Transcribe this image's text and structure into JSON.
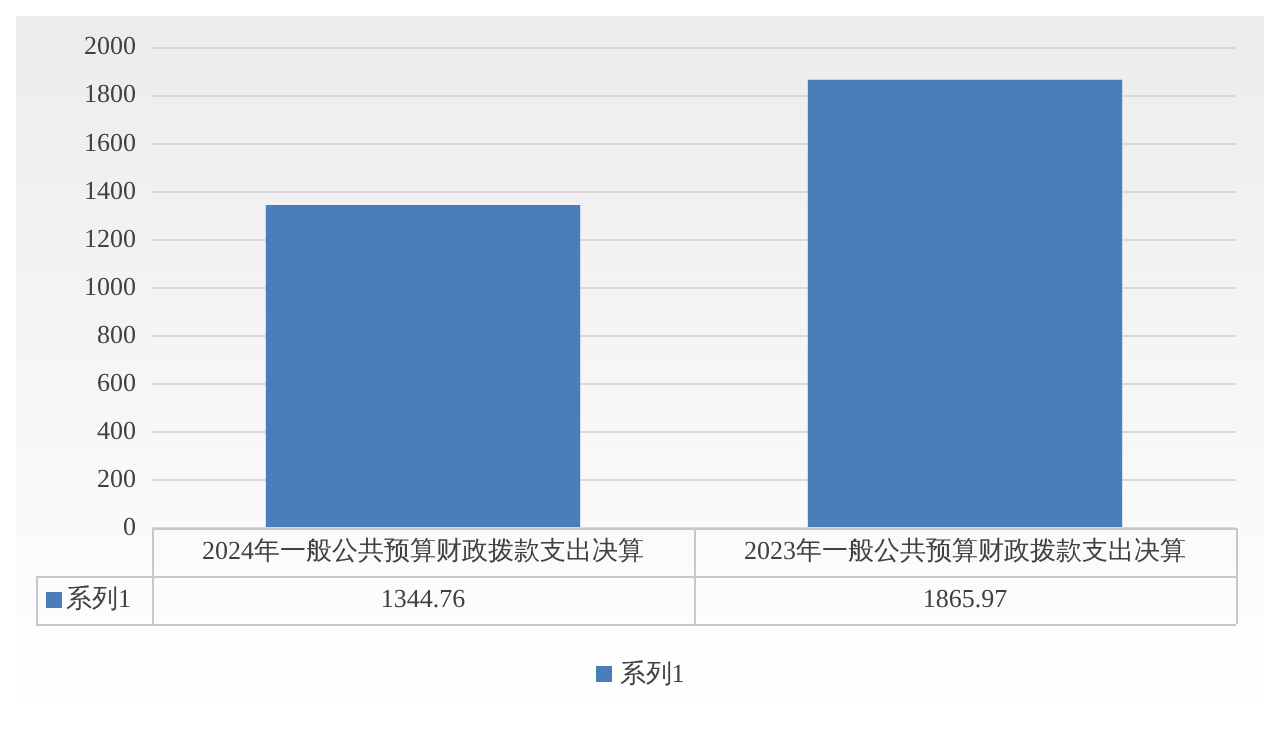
{
  "chart_data": {
    "type": "bar",
    "categories": [
      "2024年一般公共预算财政拨款支出决算",
      "2023年一般公共预算财政拨款支出决算"
    ],
    "series": [
      {
        "name": "系列1",
        "color": "#4a7ebb",
        "values": [
          1344.76,
          1865.97
        ]
      }
    ],
    "ylim": [
      0,
      2000
    ],
    "yticks": [
      0,
      200,
      400,
      600,
      800,
      1000,
      1200,
      1400,
      1600,
      1800,
      2000
    ],
    "grid": "y",
    "legend": "bottom",
    "data_labels": true
  }
}
